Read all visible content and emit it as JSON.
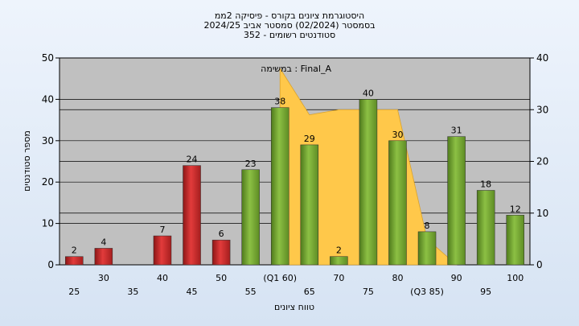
{
  "chart_data": {
    "type": "bar",
    "title_lines": [
      "היסטוגרמת ציונים בקורס - פיסיקה 2ממ",
      "בסמסטר  (02/2024)  סמסטר אביב 2024/25",
      "סטודנטים רשומים - 352"
    ],
    "xlabel": "טווח ציונים",
    "ylabel": "מספר סטודנטים",
    "legend_text": "במשימה : Final_A",
    "categories": [
      "25",
      "30",
      "35",
      "40",
      "45",
      "50",
      "55",
      "(Q1 60)",
      "65",
      "70",
      "75",
      "80",
      "(Q3 85)",
      "90",
      "95",
      "100"
    ],
    "values": [
      2,
      4,
      0,
      7,
      24,
      6,
      23,
      38,
      29,
      2,
      40,
      30,
      8,
      31,
      18,
      12
    ],
    "bar_labels": [
      "2",
      "4",
      "",
      "7",
      "24",
      "6",
      "23",
      "38",
      "29",
      "2",
      "40",
      "30",
      "8",
      "31",
      "18",
      "12"
    ],
    "bar_colors": [
      "red",
      "red",
      "",
      "red",
      "red",
      "red",
      "green",
      "green",
      "green",
      "green",
      "green",
      "green",
      "green",
      "green",
      "green",
      "green"
    ],
    "area_series": {
      "points": [
        [
          7,
          38
        ],
        [
          8,
          29
        ],
        [
          9,
          30
        ],
        [
          10,
          30
        ],
        [
          11,
          30
        ],
        [
          12,
          5
        ],
        [
          13,
          0
        ]
      ]
    },
    "ylim": [
      0,
      50
    ],
    "yticks": [
      "0",
      "10",
      "20",
      "30",
      "40",
      "50"
    ],
    "y2lim": [
      0,
      40
    ],
    "y2ticks": [
      "0",
      "10",
      "20",
      "30",
      "40"
    ],
    "grid": true,
    "colors": {
      "red_bar": "#e23b3b",
      "green_bar": "#8cc044",
      "area": "#ffc84a",
      "plot_bg": "#c0c0c0"
    }
  }
}
